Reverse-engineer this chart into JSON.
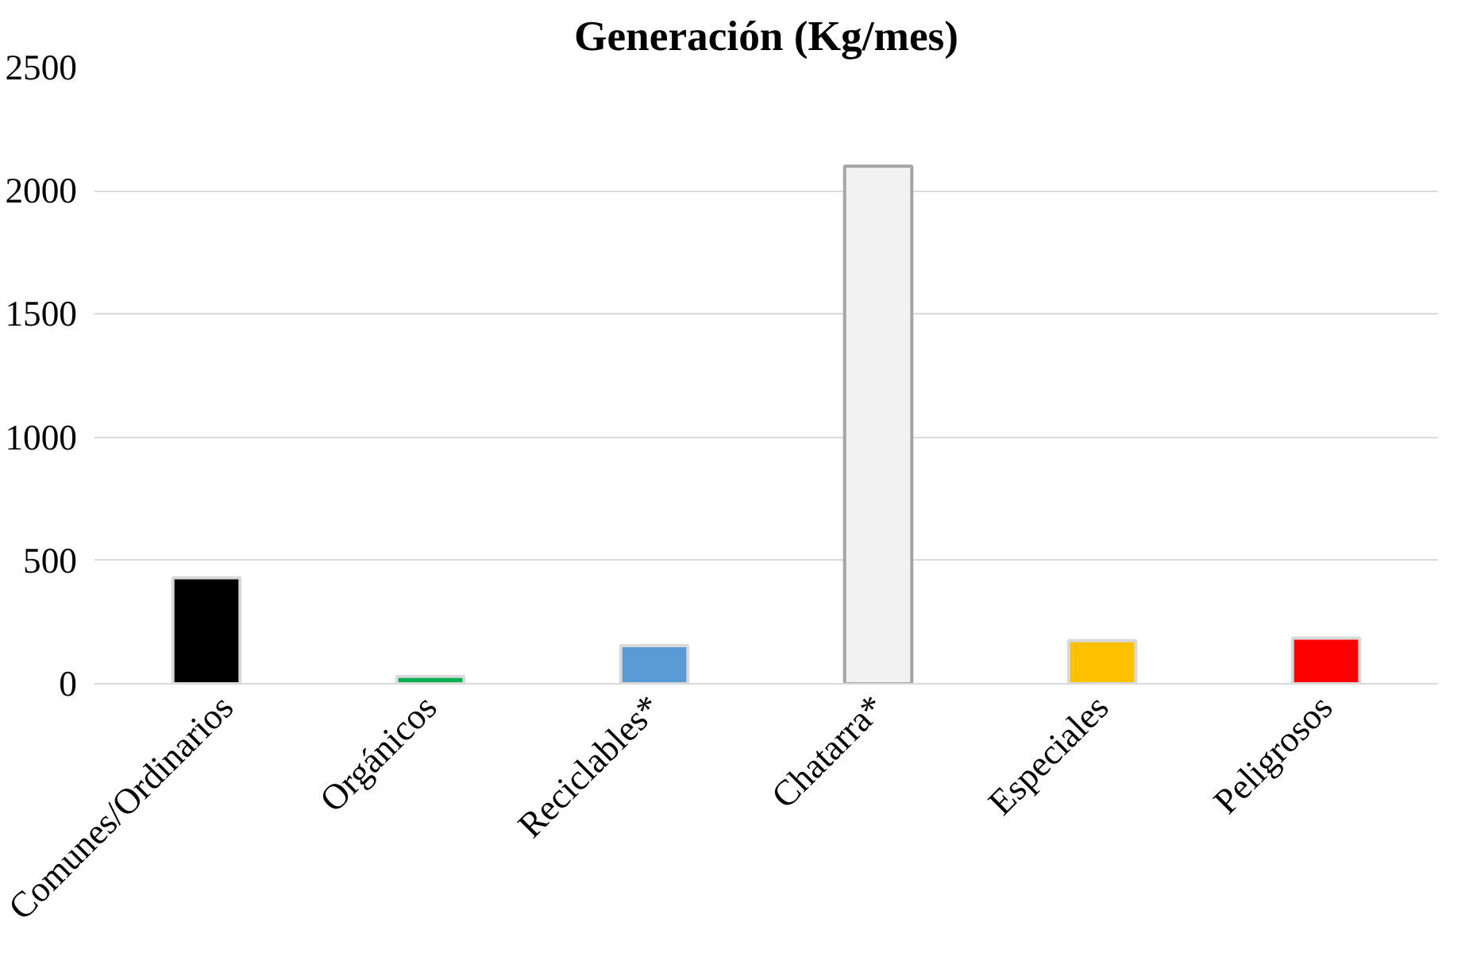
{
  "chart_data": {
    "type": "bar",
    "title": "Generación (Kg/mes)",
    "categories": [
      "Comunes/Ordinarios",
      "Orgánicos",
      "Reciclables*",
      "Chatarra*",
      "Especiales",
      "Peligrosos"
    ],
    "values": [
      430,
      30,
      155,
      2100,
      175,
      185
    ],
    "colors": [
      "#000000",
      "#00b050",
      "#5b9bd5",
      "#f2f2f2",
      "#ffc000",
      "#ff0000"
    ],
    "ylim": [
      0,
      2500
    ],
    "yticks": [
      0,
      500,
      1000,
      1500,
      2000,
      2500
    ],
    "grid": "y"
  }
}
